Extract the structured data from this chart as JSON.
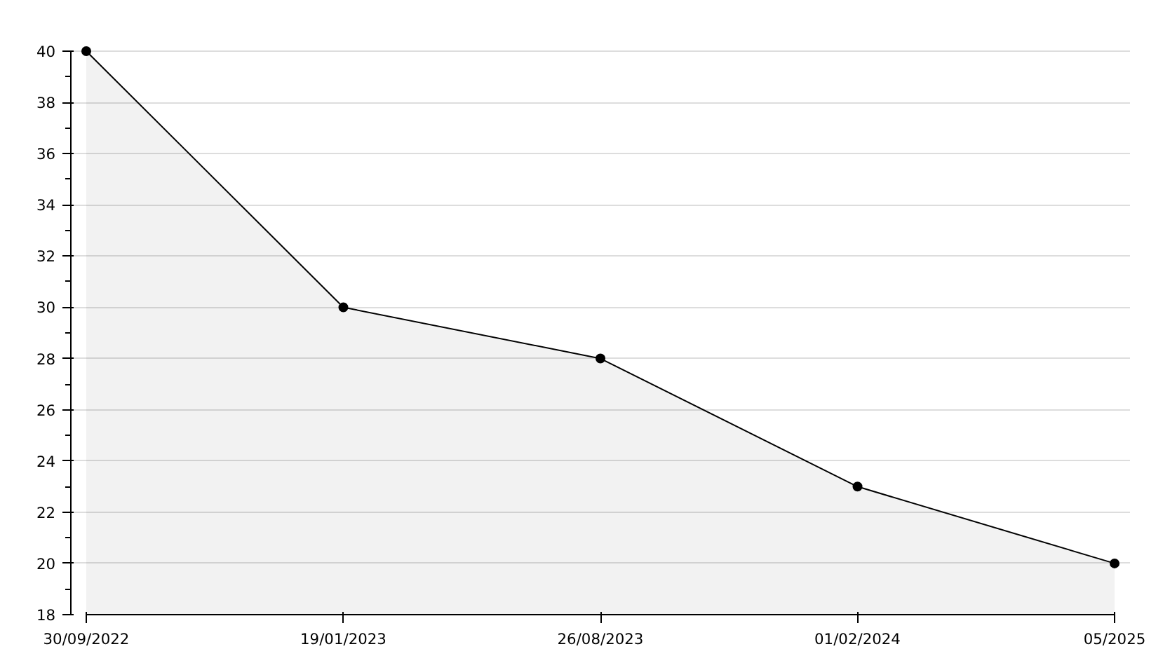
{
  "chart_data": {
    "type": "area",
    "categories": [
      "30/09/2022",
      "19/01/2023",
      "26/08/2023",
      "01/02/2024",
      "05/2025"
    ],
    "series": [
      {
        "color": "#000000",
        "values": [
          40,
          30,
          28,
          23,
          20
        ]
      }
    ],
    "ylim": [
      18,
      40
    ],
    "yticks": [
      18,
      20,
      22,
      24,
      26,
      28,
      30,
      32,
      34,
      36,
      38,
      40
    ],
    "grid": "y",
    "marker": "circle",
    "line_style": "solid"
  }
}
